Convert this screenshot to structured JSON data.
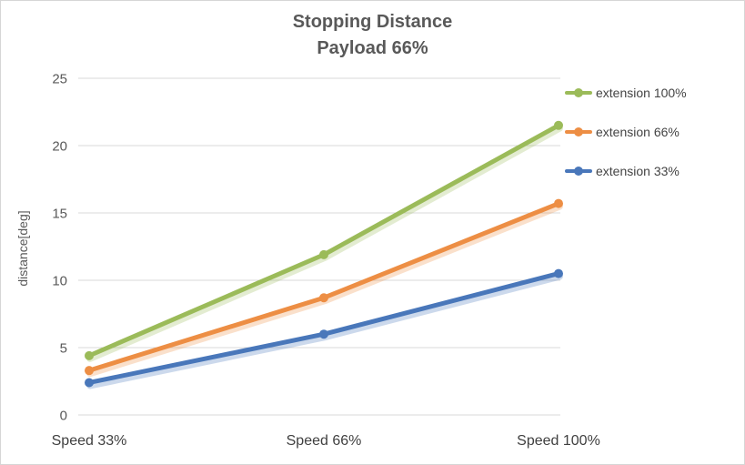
{
  "chart_data": {
    "type": "line",
    "title": "Stopping Distance",
    "subtitle": "Payload 66%",
    "ylabel": "distance[deg]",
    "xlabel": "",
    "categories": [
      "Speed 33%",
      "Speed 66%",
      "Speed 100%"
    ],
    "series": [
      {
        "name": "extension 100%",
        "color": "#9bbb59",
        "values": [
          4.4,
          11.9,
          21.5
        ]
      },
      {
        "name": "extension 66%",
        "color": "#ed8e44",
        "values": [
          3.3,
          8.7,
          15.7
        ]
      },
      {
        "name": "extension 33%",
        "color": "#4977ba",
        "values": [
          2.4,
          6.0,
          10.5
        ]
      }
    ],
    "ylim": [
      0,
      25
    ],
    "yticks": [
      0,
      5,
      10,
      15,
      20,
      25
    ],
    "grid": true,
    "legend_position": "right",
    "gridline_color": "#d9d9d9"
  }
}
